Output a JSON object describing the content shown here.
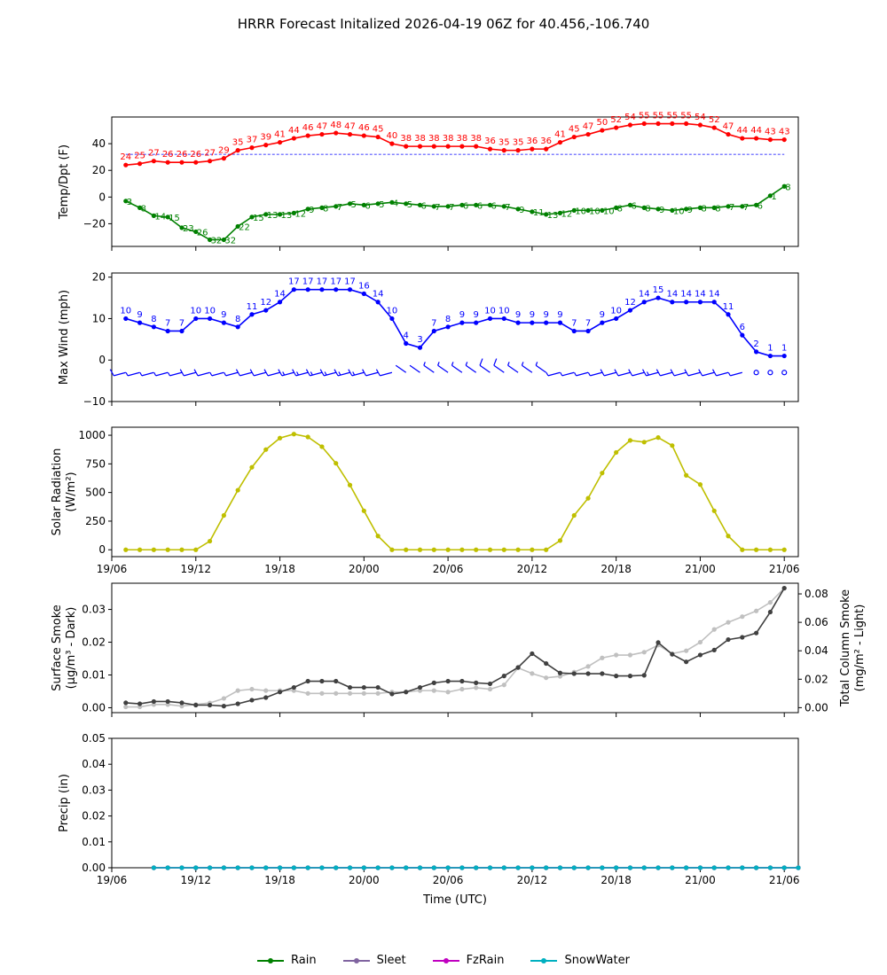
{
  "title": "HRRR Forecast Initalized 2026-04-19 06Z for 40.456,-106.740",
  "colors": {
    "temp": "#ff0000",
    "dew": "#008000",
    "wind": "#0000ff",
    "solar": "#bfbf00",
    "smoke_dark": "#404040",
    "smoke_light": "#c0c0c0",
    "rain": "#008000",
    "sleet": "#8064a0",
    "fzrain": "#c000c0",
    "snow": "#00b0c0"
  },
  "x_axis": {
    "ticks": [
      "19/06",
      "19/12",
      "19/18",
      "20/00",
      "20/06",
      "20/12",
      "20/18",
      "21/00",
      "21/06"
    ],
    "label": "Time (UTC)"
  },
  "legend": [
    {
      "name": "Rain",
      "color": "#008000"
    },
    {
      "name": "Sleet",
      "color": "#8064a0"
    },
    {
      "name": "FzRain",
      "color": "#c000c0"
    },
    {
      "name": "SnowWater",
      "color": "#00b0c0"
    }
  ],
  "chart_data": [
    {
      "type": "line",
      "title": "",
      "ylabel": "Temp/Dpt (F)",
      "ylim": [
        -37,
        60
      ],
      "yticks": [
        -20,
        0,
        20,
        40
      ],
      "x_start_hour": 1,
      "reference_line": 32,
      "series": [
        {
          "name": "Temperature",
          "values": [
            24,
            25,
            27,
            26,
            26,
            26,
            27,
            29,
            35,
            37,
            39,
            41,
            44,
            46,
            47,
            48,
            47,
            46,
            45,
            40,
            38,
            38,
            38,
            38,
            38,
            38,
            36,
            35,
            35,
            36,
            36,
            41,
            45,
            47,
            50,
            52,
            54,
            55,
            55,
            55,
            55,
            54,
            52,
            47,
            44,
            44,
            43,
            43
          ]
        },
        {
          "name": "Dewpoint",
          "values": [
            -3,
            -8,
            -14,
            -15,
            -23,
            -26,
            -32,
            -32,
            -22,
            -15,
            -13,
            -13,
            -12,
            -9,
            -8,
            -7,
            -5,
            -6,
            -5,
            -4,
            -5,
            -6,
            -7,
            -7,
            -6,
            -6,
            -6,
            -7,
            -9,
            -11,
            -13,
            -12,
            -10,
            -10,
            -10,
            -8,
            -6,
            -8,
            -9,
            -10,
            -9,
            -8,
            -8,
            -7,
            -7,
            -6,
            1,
            8
          ]
        }
      ]
    },
    {
      "type": "line",
      "title": "",
      "ylabel": "Max Wind (mph)",
      "ylim": [
        -10,
        21
      ],
      "yticks": [
        -10,
        0,
        10,
        20
      ],
      "x_start_hour": 1,
      "series": [
        {
          "name": "Max Wind",
          "values": [
            10,
            9,
            8,
            7,
            7,
            10,
            10,
            9,
            8,
            11,
            12,
            14,
            17,
            17,
            17,
            17,
            17,
            16,
            14,
            10,
            4,
            3,
            7,
            8,
            9,
            9,
            10,
            10,
            9,
            9,
            9,
            9,
            7,
            7,
            9,
            10,
            12,
            14,
            15,
            14,
            14,
            14,
            14,
            11,
            6,
            2,
            1,
            1
          ]
        }
      ]
    },
    {
      "type": "line",
      "title": "",
      "ylabel": "Solar Radiation (W/m²)",
      "ylim": [
        -60,
        1070
      ],
      "yticks": [
        0,
        250,
        500,
        750,
        1000
      ],
      "x_start_hour": 1,
      "series": [
        {
          "name": "Solar Radiation",
          "values": [
            0,
            0,
            0,
            0,
            0,
            0,
            75,
            300,
            520,
            720,
            875,
            975,
            1010,
            985,
            900,
            755,
            565,
            340,
            120,
            0,
            0,
            0,
            0,
            0,
            0,
            0,
            0,
            0,
            0,
            0,
            0,
            80,
            300,
            450,
            670,
            850,
            955,
            940,
            980,
            910,
            650,
            570,
            340,
            120,
            0,
            0,
            0,
            0
          ]
        }
      ]
    },
    {
      "type": "line",
      "title": "",
      "ylabel": "Surface Smoke (µg/m³ - Dark)",
      "ylabel_right": "Total Column Smoke (mg/m² - Light)",
      "ylim": [
        -0.0015,
        0.038
      ],
      "yticks": [
        0.0,
        0.01,
        0.02,
        0.03
      ],
      "ylim_right": [
        -0.0035,
        0.0875
      ],
      "yticks_right": [
        0.0,
        0.02,
        0.04,
        0.06,
        0.08
      ],
      "x_start_hour": 1,
      "series": [
        {
          "name": "Surface Smoke (Dark)",
          "axis": "left",
          "values": [
            0.0015,
            0.0012,
            0.0019,
            0.0019,
            0.0015,
            0.0008,
            0.0008,
            0.0005,
            0.0012,
            0.0023,
            0.0031,
            0.0048,
            0.0062,
            0.0081,
            0.0081,
            0.0081,
            0.0062,
            0.0062,
            0.0062,
            0.0042,
            0.0048,
            0.0062,
            0.0076,
            0.0081,
            0.0081,
            0.0076,
            0.0073,
            0.0097,
            0.0123,
            0.0165,
            0.0135,
            0.0106,
            0.0104,
            0.0104,
            0.0104,
            0.0097,
            0.0097,
            0.0099,
            0.0199,
            0.0163,
            0.014,
            0.0161,
            0.0176,
            0.0208,
            0.0215,
            0.0228,
            0.0292,
            0.0365
          ]
        },
        {
          "name": "Total Column Smoke (Light)",
          "axis": "right",
          "values": [
            0.0005,
            0.0005,
            0.0022,
            0.0022,
            0.0011,
            0.0022,
            0.0033,
            0.0065,
            0.012,
            0.013,
            0.012,
            0.012,
            0.012,
            0.01,
            0.01,
            0.01,
            0.01,
            0.01,
            0.01,
            0.011,
            0.011,
            0.012,
            0.012,
            0.011,
            0.013,
            0.014,
            0.013,
            0.016,
            0.028,
            0.024,
            0.021,
            0.022,
            0.025,
            0.029,
            0.035,
            0.037,
            0.037,
            0.039,
            0.044,
            0.038,
            0.04,
            0.046,
            0.055,
            0.06,
            0.064,
            0.068,
            0.074,
            0.084
          ]
        }
      ]
    },
    {
      "type": "line",
      "title": "",
      "ylabel": "Precip (in)",
      "xlabel": "Time (UTC)",
      "ylim": [
        0,
        0.05
      ],
      "yticks": [
        0.0,
        0.01,
        0.02,
        0.03,
        0.04,
        0.05
      ],
      "x_start_hour": 3,
      "series": [
        {
          "name": "Rain",
          "values": [
            0,
            0,
            0,
            0,
            0,
            0,
            0,
            0,
            0,
            0,
            0,
            0,
            0,
            0,
            0,
            0,
            0,
            0,
            0,
            0,
            0,
            0,
            0,
            0,
            0,
            0,
            0,
            0,
            0,
            0,
            0,
            0,
            0,
            0,
            0,
            0,
            0,
            0,
            0,
            0,
            0,
            0,
            0,
            0,
            0,
            0,
            0
          ]
        },
        {
          "name": "Sleet",
          "values": [
            0,
            0,
            0,
            0,
            0,
            0,
            0,
            0,
            0,
            0,
            0,
            0,
            0,
            0,
            0,
            0,
            0,
            0,
            0,
            0,
            0,
            0,
            0,
            0,
            0,
            0,
            0,
            0,
            0,
            0,
            0,
            0,
            0,
            0,
            0,
            0,
            0,
            0,
            0,
            0,
            0,
            0,
            0,
            0,
            0,
            0,
            0
          ]
        },
        {
          "name": "FzRain",
          "values": [
            0,
            0,
            0,
            0,
            0,
            0,
            0,
            0,
            0,
            0,
            0,
            0,
            0,
            0,
            0,
            0,
            0,
            0,
            0,
            0,
            0,
            0,
            0,
            0,
            0,
            0,
            0,
            0,
            0,
            0,
            0,
            0,
            0,
            0,
            0,
            0,
            0,
            0,
            0,
            0,
            0,
            0,
            0,
            0,
            0,
            0,
            0
          ]
        },
        {
          "name": "SnowWater",
          "values": [
            0,
            0,
            0,
            0,
            0,
            0,
            0,
            0,
            0,
            0,
            0,
            0,
            0,
            0,
            0,
            0,
            0,
            0,
            0,
            0,
            0,
            0,
            0,
            0,
            0,
            0,
            0,
            0,
            0,
            0,
            0,
            0,
            0,
            0,
            0,
            0,
            0,
            0,
            0,
            0,
            0,
            0,
            0,
            0,
            0,
            0,
            0
          ]
        }
      ]
    }
  ]
}
